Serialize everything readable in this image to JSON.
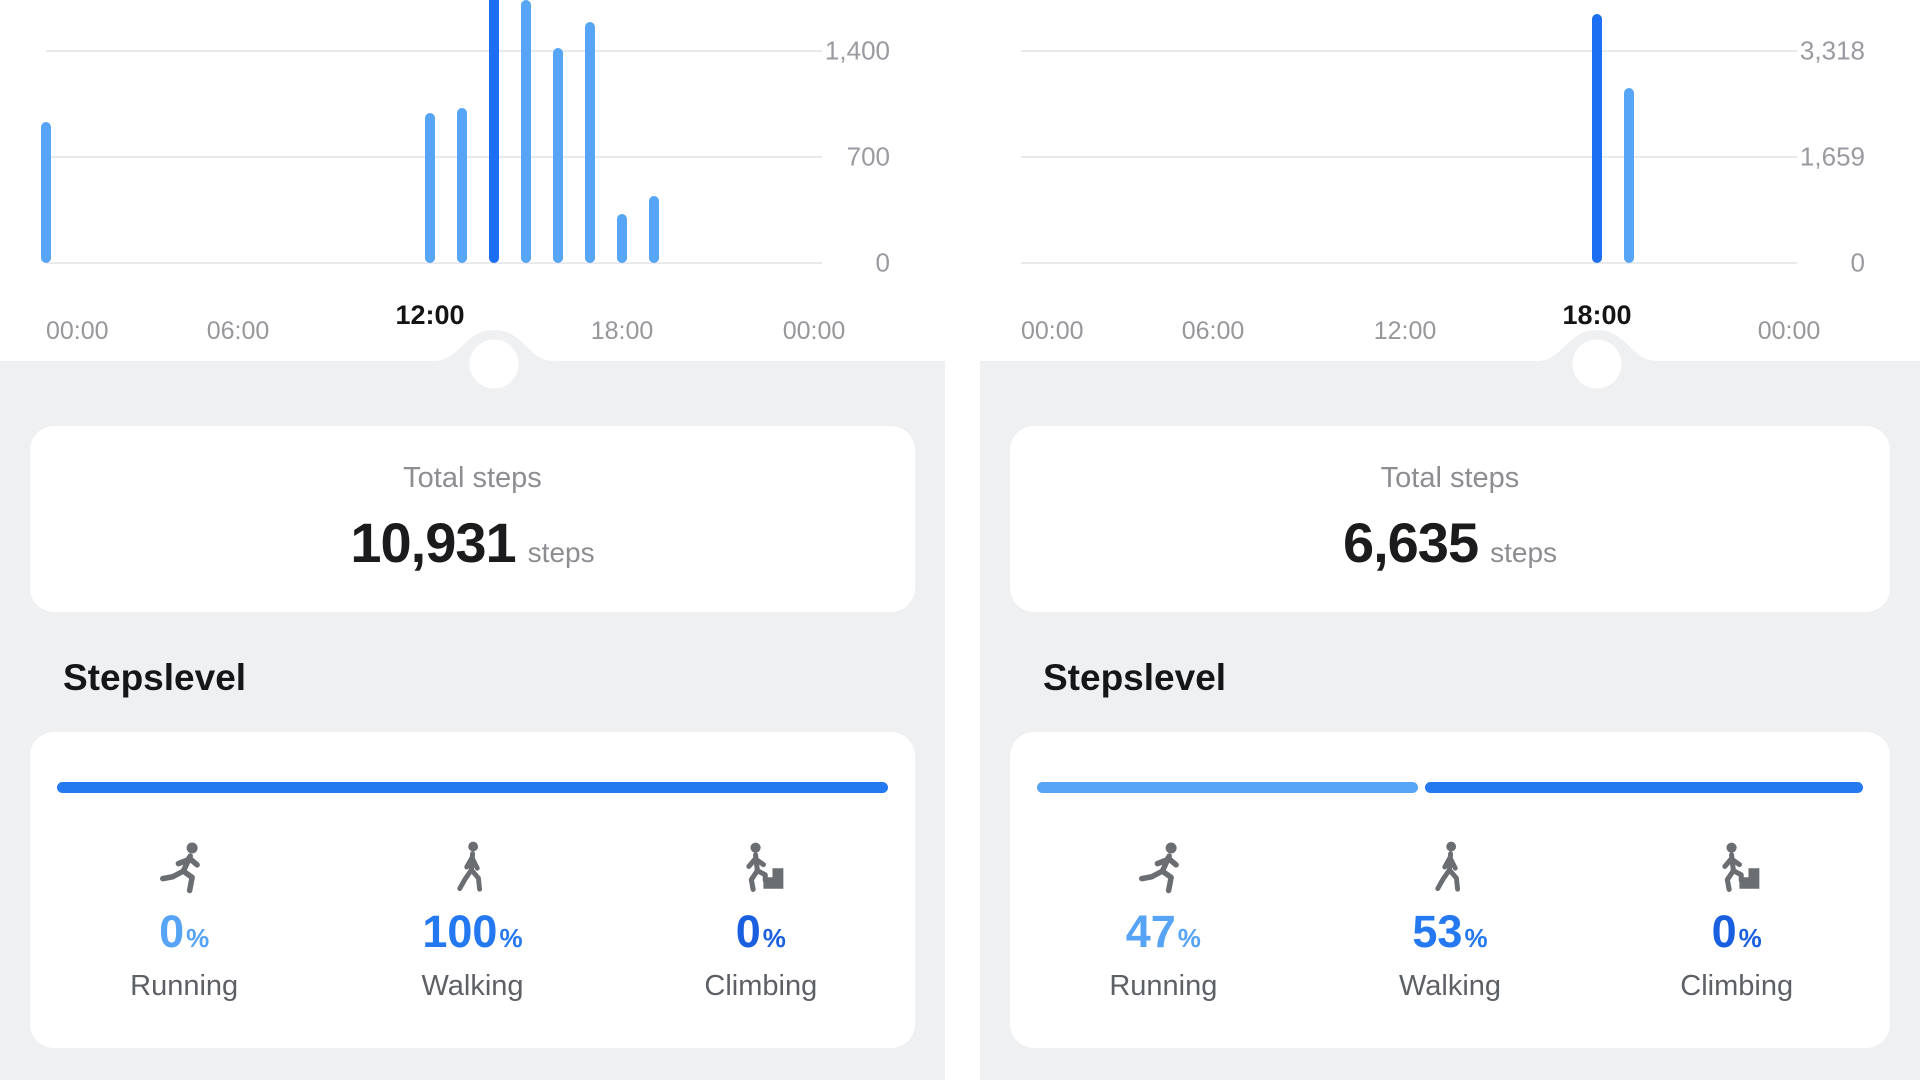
{
  "colors": {
    "bar_normal": "#57A5F6",
    "bar_selected": "#1C6EF2",
    "running": "#57A3F6",
    "walking": "#2478F0",
    "climbing": "#1A5FE0",
    "background_gray": "#EFF0F2"
  },
  "percent_suffix": "%",
  "chart_data": [
    {
      "type": "bar",
      "title": "Steps by hour (left day)",
      "x_unit": "hour of day",
      "ylabel": "steps",
      "ymax": 1400,
      "grid": true,
      "y_gridlines": [
        {
          "value": 1400,
          "label": "1,400"
        },
        {
          "value": 700,
          "label": "700"
        },
        {
          "value": 0,
          "label": "0"
        }
      ],
      "x_ticks": [
        {
          "hour": 0,
          "label": "00:00",
          "emphasized": false,
          "align": "left"
        },
        {
          "hour": 6,
          "label": "06:00",
          "emphasized": false
        },
        {
          "hour": 12,
          "label": "12:00",
          "emphasized": true
        },
        {
          "hour": 18,
          "label": "18:00",
          "emphasized": false
        },
        {
          "hour": 24,
          "label": "00:00",
          "emphasized": false
        }
      ],
      "bars": [
        {
          "hour": 0,
          "value": 930
        },
        {
          "hour": 12,
          "value": 990
        },
        {
          "hour": 13,
          "value": 1025
        },
        {
          "hour": 14,
          "value": 2466,
          "selected": true
        },
        {
          "hour": 15,
          "value": 1740
        },
        {
          "hour": 16,
          "value": 1420
        },
        {
          "hour": 17,
          "value": 1590
        },
        {
          "hour": 18,
          "value": 325
        },
        {
          "hour": 19,
          "value": 445
        }
      ],
      "selected_hour": 14
    },
    {
      "type": "bar",
      "title": "Steps by hour (right day)",
      "x_unit": "hour of day",
      "ylabel": "steps",
      "ymax": 3318,
      "grid": true,
      "y_gridlines": [
        {
          "value": 3318,
          "label": "3,318"
        },
        {
          "value": 1659,
          "label": "1,659"
        },
        {
          "value": 0,
          "label": "0"
        }
      ],
      "x_ticks": [
        {
          "hour": 0,
          "label": "00:00",
          "emphasized": false,
          "align": "left"
        },
        {
          "hour": 6,
          "label": "06:00",
          "emphasized": false
        },
        {
          "hour": 12,
          "label": "12:00",
          "emphasized": false
        },
        {
          "hour": 18,
          "label": "18:00",
          "emphasized": true
        },
        {
          "hour": 24,
          "label": "00:00",
          "emphasized": false
        }
      ],
      "bars": [
        {
          "hour": 18,
          "value": 3896,
          "selected": true
        },
        {
          "hour": 19,
          "value": 2739
        }
      ],
      "selected_hour": 18
    }
  ],
  "panels": [
    {
      "total_label": "Total steps",
      "total_value": "10,931",
      "total_unit": "steps",
      "section_title": "Stepslevel",
      "levels": [
        {
          "key": "running",
          "percent": "0",
          "label": "Running"
        },
        {
          "key": "walking",
          "percent": "100",
          "label": "Walking"
        },
        {
          "key": "climbing",
          "percent": "0",
          "label": "Climbing"
        }
      ],
      "progress_segments": [
        {
          "key": "walking",
          "fraction": 1.0
        }
      ]
    },
    {
      "total_label": "Total steps",
      "total_value": "6,635",
      "total_unit": "steps",
      "section_title": "Stepslevel",
      "levels": [
        {
          "key": "running",
          "percent": "47",
          "label": "Running"
        },
        {
          "key": "walking",
          "percent": "53",
          "label": "Walking"
        },
        {
          "key": "climbing",
          "percent": "0",
          "label": "Climbing"
        }
      ],
      "progress_segments": [
        {
          "key": "running",
          "fraction": 0.465
        },
        {
          "key": "walking",
          "fraction": 0.535
        }
      ]
    }
  ]
}
